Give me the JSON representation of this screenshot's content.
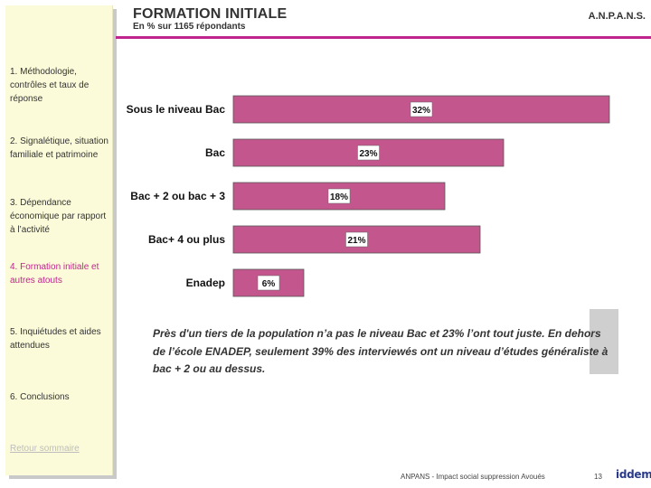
{
  "header": {
    "title": "FORMATION INITIALE",
    "subtitle": "En % sur 1165 répondants",
    "brand": "A.N.P.A.N.S."
  },
  "sidebar": {
    "items": [
      {
        "label": "1. Méthodologie, contrôles et taux de réponse"
      },
      {
        "label": "2. Signalétique, situation familiale et patrimoine"
      },
      {
        "label": "3. Dépendance économique par rapport à l’activité"
      },
      {
        "label": "4. Formation initiale et autres atouts"
      },
      {
        "label": "5. Inquiétudes et aides attendues"
      },
      {
        "label": "6. Conclusions"
      }
    ],
    "return_link": "Retour sommaire"
  },
  "chart_data": {
    "type": "bar",
    "orientation": "horizontal",
    "categories": [
      "Sous le niveau Bac",
      "Bac",
      "Bac + 2 ou bac + 3",
      "Bac+ 4 ou  plus",
      "Enadep"
    ],
    "values": [
      32,
      23,
      18,
      21,
      6
    ],
    "value_labels": [
      "32%",
      "23%",
      "18%",
      "21%",
      "6%"
    ],
    "bar_color": "#c4568e",
    "unit": "%",
    "xlim": [
      0,
      32
    ]
  },
  "description": "Près d'un tiers de la population n’a pas le niveau Bac et 23% l’ont tout juste. En dehors de l’école ENADEP, seulement 39% des interviewés ont un niveau d’études généraliste à bac + 2 ou au dessus.",
  "footer": {
    "text": "ANPANS - Impact social suppression Avoués",
    "page": "13",
    "logo": "iddem"
  }
}
